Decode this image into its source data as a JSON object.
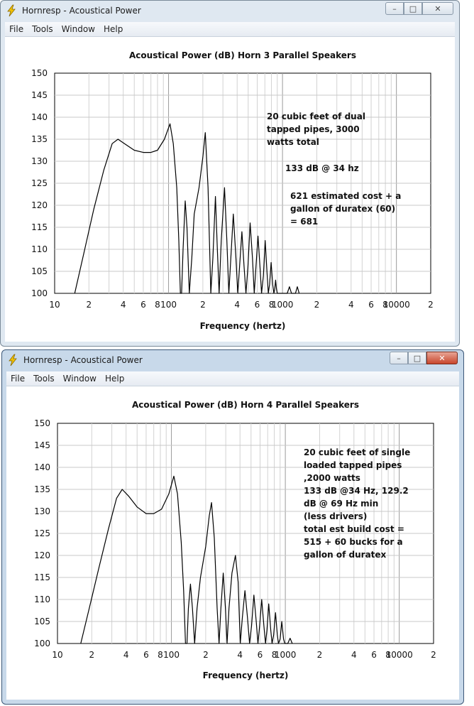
{
  "windows": [
    {
      "title": "Hornresp - Acoustical Power",
      "menu": [
        "File",
        "Tools",
        "Window",
        "Help"
      ],
      "buttons": {
        "minimize": "–",
        "maximize": "□",
        "close": "✕"
      },
      "chart_data": {
        "type": "line",
        "title": "Acoustical Power (dB)    Horn    3 Parallel Speakers",
        "xlabel": "Frequency (hertz)",
        "ylabel": "",
        "x_scale": "log",
        "xlim": [
          10,
          20000
        ],
        "ylim": [
          100,
          150
        ],
        "y_ticks": [
          100,
          105,
          110,
          115,
          120,
          125,
          130,
          135,
          140,
          145,
          150
        ],
        "x_tick_labels": [
          {
            "f": 10,
            "label": "10"
          },
          {
            "f": 20,
            "label": "2"
          },
          {
            "f": 40,
            "label": "4"
          },
          {
            "f": 60,
            "label": "6"
          },
          {
            "f": 80,
            "label": "8"
          },
          {
            "f": 100,
            "label": "100"
          },
          {
            "f": 200,
            "label": "2"
          },
          {
            "f": 400,
            "label": "4"
          },
          {
            "f": 600,
            "label": "6"
          },
          {
            "f": 800,
            "label": "8"
          },
          {
            "f": 1000,
            "label": "1000"
          },
          {
            "f": 2000,
            "label": "2"
          },
          {
            "f": 4000,
            "label": "4"
          },
          {
            "f": 6000,
            "label": "6"
          },
          {
            "f": 8000,
            "label": "8"
          },
          {
            "f": 10000,
            "label": "10000"
          },
          {
            "f": 20000,
            "label": "2"
          }
        ],
        "grid": true,
        "series": [
          {
            "values": [
              [
                15,
                100
              ],
              [
                18,
                109
              ],
              [
                22,
                119
              ],
              [
                27,
                128
              ],
              [
                32,
                134
              ],
              [
                36,
                135
              ],
              [
                41,
                134
              ],
              [
                50,
                132.5
              ],
              [
                60,
                132
              ],
              [
                70,
                132
              ],
              [
                80,
                132.5
              ],
              [
                92,
                135
              ],
              [
                103,
                138.5
              ],
              [
                110,
                134
              ],
              [
                118,
                124
              ],
              [
                123,
                112
              ],
              [
                127,
                100
              ],
              [
                130,
                100
              ],
              [
                134,
                110
              ],
              [
                140,
                121
              ],
              [
                145,
                115
              ],
              [
                152,
                100
              ],
              [
                160,
                108
              ],
              [
                168,
                118
              ],
              [
                185,
                124
              ],
              [
                200,
                131
              ],
              [
                210,
                136.5
              ],
              [
                222,
                124
              ],
              [
                235,
                100
              ],
              [
                245,
                108
              ],
              [
                258,
                122
              ],
              [
                268,
                110
              ],
              [
                278,
                100
              ],
              [
                290,
                112
              ],
              [
                310,
                124
              ],
              [
                325,
                112
              ],
              [
                338,
                100
              ],
              [
                352,
                108
              ],
              [
                370,
                118
              ],
              [
                390,
                108
              ],
              [
                405,
                100
              ],
              [
                420,
                106
              ],
              [
                440,
                114
              ],
              [
                460,
                106
              ],
              [
                478,
                100
              ],
              [
                497,
                106
              ],
              [
                520,
                116
              ],
              [
                545,
                108
              ],
              [
                565,
                100
              ],
              [
                585,
                106
              ],
              [
                610,
                113
              ],
              [
                635,
                106
              ],
              [
                655,
                100
              ],
              [
                680,
                104
              ],
              [
                705,
                112
              ],
              [
                730,
                105
              ],
              [
                750,
                100
              ],
              [
                770,
                102
              ],
              [
                795,
                107
              ],
              [
                820,
                102
              ],
              [
                840,
                100
              ],
              [
                855,
                101
              ],
              [
                870,
                103
              ],
              [
                885,
                101
              ],
              [
                900,
                100
              ],
              [
                1100,
                100
              ],
              [
                1150,
                101.5
              ],
              [
                1200,
                100
              ],
              [
                1300,
                100
              ],
              [
                1350,
                101.5
              ],
              [
                1400,
                100
              ]
            ]
          }
        ],
        "annotations": [
          "20 cubic feet of dual",
          "tapped pipes, 3000",
          "watts total",
          "133 dB @ 34 hz",
          "621 estimated cost + a",
          "gallon of duratex (60)",
          "= 681"
        ]
      }
    },
    {
      "title": "Hornresp - Acoustical Power",
      "menu": [
        "File",
        "Tools",
        "Window",
        "Help"
      ],
      "buttons": {
        "minimize": "–",
        "maximize": "□",
        "close": "✕"
      },
      "chart_data": {
        "type": "line",
        "title": "Acoustical Power (dB)    Horn    4 Parallel Speakers",
        "xlabel": "Frequency (hertz)",
        "ylabel": "",
        "x_scale": "log",
        "xlim": [
          10,
          20000
        ],
        "ylim": [
          100,
          150
        ],
        "y_ticks": [
          100,
          105,
          110,
          115,
          120,
          125,
          130,
          135,
          140,
          145,
          150
        ],
        "x_tick_labels": [
          {
            "f": 10,
            "label": "10"
          },
          {
            "f": 20,
            "label": "2"
          },
          {
            "f": 40,
            "label": "4"
          },
          {
            "f": 60,
            "label": "6"
          },
          {
            "f": 80,
            "label": "8"
          },
          {
            "f": 100,
            "label": "100"
          },
          {
            "f": 200,
            "label": "2"
          },
          {
            "f": 400,
            "label": "4"
          },
          {
            "f": 600,
            "label": "6"
          },
          {
            "f": 800,
            "label": "8"
          },
          {
            "f": 1000,
            "label": "1000"
          },
          {
            "f": 2000,
            "label": "2"
          },
          {
            "f": 4000,
            "label": "4"
          },
          {
            "f": 6000,
            "label": "6"
          },
          {
            "f": 8000,
            "label": "8"
          },
          {
            "f": 10000,
            "label": "10000"
          },
          {
            "f": 20000,
            "label": "2"
          }
        ],
        "grid": true,
        "series": [
          {
            "values": [
              [
                16,
                100
              ],
              [
                19,
                108
              ],
              [
                23,
                117
              ],
              [
                28,
                126
              ],
              [
                33,
                133
              ],
              [
                37,
                135
              ],
              [
                42,
                133.5
              ],
              [
                50,
                131
              ],
              [
                60,
                129.5
              ],
              [
                70,
                129.5
              ],
              [
                82,
                130.5
              ],
              [
                95,
                134
              ],
              [
                105,
                138
              ],
              [
                113,
                134
              ],
              [
                122,
                123
              ],
              [
                128,
                112
              ],
              [
                133,
                100
              ],
              [
                137,
                100
              ],
              [
                141,
                108
              ],
              [
                147,
                113.5
              ],
              [
                153,
                108
              ],
              [
                160,
                100
              ],
              [
                168,
                108
              ],
              [
                180,
                115
              ],
              [
                200,
                122
              ],
              [
                215,
                129
              ],
              [
                225,
                132
              ],
              [
                238,
                124
              ],
              [
                252,
                108
              ],
              [
                262,
                100
              ],
              [
                272,
                108
              ],
              [
                285,
                116
              ],
              [
                298,
                108
              ],
              [
                308,
                100
              ],
              [
                320,
                108
              ],
              [
                340,
                116
              ],
              [
                365,
                120
              ],
              [
                385,
                114
              ],
              [
                402,
                100
              ],
              [
                420,
                106
              ],
              [
                442,
                112
              ],
              [
                465,
                106
              ],
              [
                485,
                100
              ],
              [
                505,
                104
              ],
              [
                530,
                111
              ],
              [
                555,
                105
              ],
              [
                575,
                100
              ],
              [
                595,
                104
              ],
              [
                620,
                110
              ],
              [
                648,
                104
              ],
              [
                670,
                100
              ],
              [
                690,
                103
              ],
              [
                715,
                109
              ],
              [
                745,
                103
              ],
              [
                765,
                100
              ],
              [
                790,
                102
              ],
              [
                820,
                107
              ],
              [
                850,
                102
              ],
              [
                870,
                100
              ],
              [
                900,
                101
              ],
              [
                930,
                105
              ],
              [
                965,
                101
              ],
              [
                990,
                100
              ],
              [
                1050,
                100
              ],
              [
                1100,
                101.2
              ],
              [
                1150,
                100
              ]
            ]
          }
        ],
        "annotations": [
          "20 cubic feet of single",
          "loaded tapped pipes",
          ",2000 watts",
          "133 dB @34 Hz, 129.2",
          "dB @ 69 Hz min",
          "(less drivers)",
          "total est build cost =",
          "515 + 60 bucks for a",
          "gallon of duratex"
        ]
      }
    }
  ]
}
